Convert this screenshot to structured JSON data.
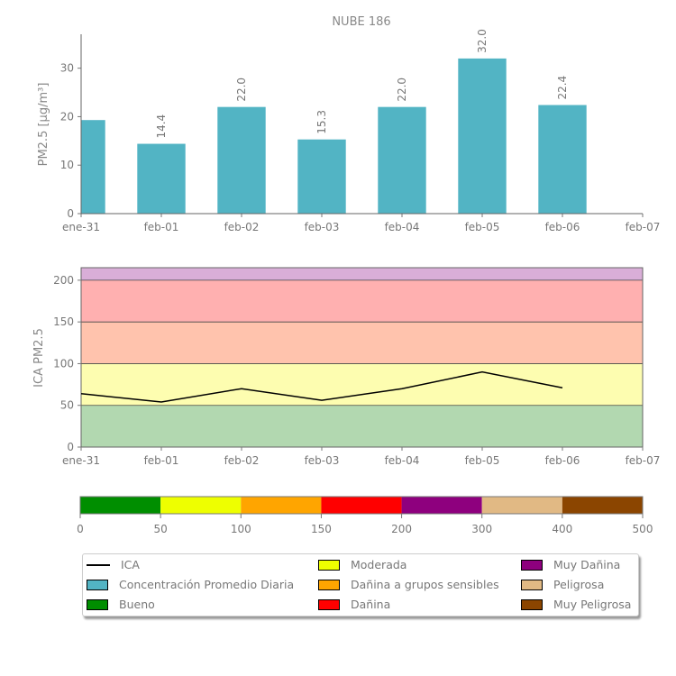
{
  "chart_data": [
    {
      "type": "bar",
      "title": "NUBE 186",
      "ylabel": "PM2.5 [μg/m³]",
      "xlabel": "",
      "categories": [
        "ene-31",
        "feb-01",
        "feb-02",
        "feb-03",
        "feb-04",
        "feb-05",
        "feb-06",
        "feb-07"
      ],
      "values": [
        19.3,
        14.4,
        22.0,
        15.3,
        22.0,
        32.0,
        22.4,
        null
      ],
      "data_labels": [
        "",
        "14.4",
        "22.0",
        "15.3",
        "22.0",
        "32.0",
        "22.4",
        ""
      ],
      "yticks": [
        "0",
        "10",
        "20",
        "30"
      ],
      "ylim": [
        0,
        37
      ],
      "color": "#52b4c4",
      "grid": false
    },
    {
      "type": "line",
      "ylabel": "ICA PM2.5",
      "categories": [
        "ene-31",
        "feb-01",
        "feb-02",
        "feb-03",
        "feb-04",
        "feb-05",
        "feb-06",
        "feb-07"
      ],
      "values": [
        64,
        54,
        70,
        56,
        70,
        90,
        71,
        null
      ],
      "yticks": [
        "0",
        "50",
        "100",
        "150",
        "200"
      ],
      "ylim": [
        0,
        215
      ],
      "bands": [
        {
          "from": 0,
          "to": 50,
          "color": "#b2d8b0"
        },
        {
          "from": 50,
          "to": 100,
          "color": "#fdfdb0"
        },
        {
          "from": 100,
          "to": 150,
          "color": "#ffc3ad"
        },
        {
          "from": 150,
          "to": 200,
          "color": "#ffb0b0"
        },
        {
          "from": 200,
          "to": 215,
          "color": "#d9aed8"
        }
      ],
      "line_color": "#000000"
    },
    {
      "type": "colorbar",
      "ticks": [
        "0",
        "50",
        "100",
        "150",
        "200",
        "300",
        "400",
        "500"
      ],
      "colors": [
        "#008e00",
        "#eeff00",
        "#ffa500",
        "#ff0000",
        "#8e007e",
        "#e1b984",
        "#8b4500"
      ]
    }
  ],
  "legend": {
    "items": [
      {
        "label": "ICA",
        "kind": "line",
        "color": "#000000"
      },
      {
        "label": "Concentración Promedio Diaria",
        "kind": "box",
        "color": "#52b4c4"
      },
      {
        "label": "Bueno",
        "kind": "box",
        "color": "#008e00"
      },
      {
        "label": "Moderada",
        "kind": "box",
        "color": "#eeff00"
      },
      {
        "label": "Dañina a grupos sensibles",
        "kind": "box",
        "color": "#ffa500"
      },
      {
        "label": "Dañina",
        "kind": "box",
        "color": "#ff0000"
      },
      {
        "label": "Muy Dañina",
        "kind": "box",
        "color": "#8e007e"
      },
      {
        "label": "Peligrosa",
        "kind": "box",
        "color": "#e1b984"
      },
      {
        "label": "Muy Peligrosa",
        "kind": "box",
        "color": "#8b4500"
      }
    ]
  }
}
